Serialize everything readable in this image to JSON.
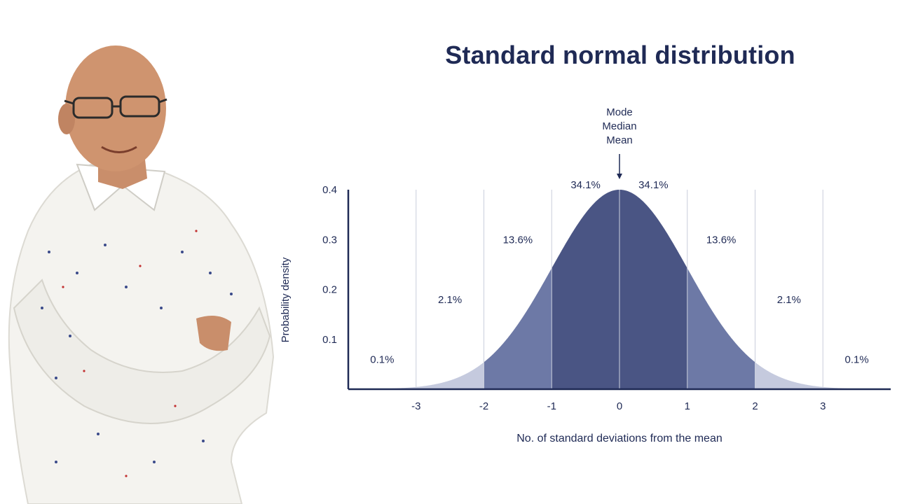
{
  "chart_data": {
    "type": "area",
    "title": "Standard normal distribution",
    "xlabel": "No. of standard deviations from the mean",
    "ylabel": "Probability density",
    "x_ticks": [
      -3,
      -2,
      -1,
      0,
      1,
      2,
      3
    ],
    "y_ticks": [
      0.1,
      0.2,
      0.3,
      0.4
    ],
    "y_tick_labels": [
      "0.1",
      "0.2",
      "0.3",
      "0.4"
    ],
    "xlim": [
      -4,
      4
    ],
    "ylim": [
      0,
      0.4
    ],
    "grid": "vertical",
    "peak_annotation": {
      "lines": [
        "Mode",
        "Median",
        "Mean"
      ],
      "x": 0
    },
    "regions": [
      {
        "from": -4,
        "to": -3,
        "percent": "0.1%",
        "label_y": 0.06,
        "color": "#c5cade"
      },
      {
        "from": -3,
        "to": -2,
        "percent": "2.1%",
        "label_y": 0.18,
        "color": "#c5cade"
      },
      {
        "from": -2,
        "to": -1,
        "percent": "13.6%",
        "label_y": 0.3,
        "color": "#6d79a6"
      },
      {
        "from": -1,
        "to": 0,
        "percent": "34.1%",
        "label_y": 0.41,
        "color": "#4a5584"
      },
      {
        "from": 0,
        "to": 1,
        "percent": "34.1%",
        "label_y": 0.41,
        "color": "#4a5584"
      },
      {
        "from": 1,
        "to": 2,
        "percent": "13.6%",
        "label_y": 0.3,
        "color": "#6d79a6"
      },
      {
        "from": 2,
        "to": 3,
        "percent": "2.1%",
        "label_y": 0.18,
        "color": "#c5cade"
      },
      {
        "from": 3,
        "to": 4,
        "percent": "0.1%",
        "label_y": 0.06,
        "color": "#c5cade"
      }
    ],
    "colors": {
      "text": "#1f2a55",
      "axis": "#1f2a55",
      "grid": "#c9cedc"
    }
  }
}
